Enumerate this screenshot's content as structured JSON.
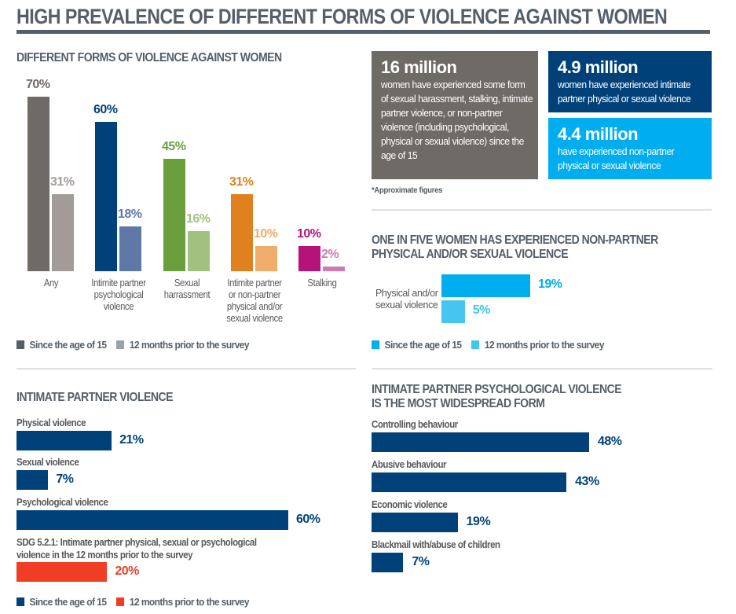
{
  "header": {
    "title": "HIGH PREVALENCE OF DIFFERENT FORMS OF VIOLENCE AGAINST WOMEN"
  },
  "colors": {
    "heading": "#555f69",
    "navy": "#00417a",
    "cyan": "#00aeef",
    "cyan_light": "#45c6ef",
    "red": "#ef3e23",
    "gray_dark": "#6e6a66",
    "gray_light": "#a39b98"
  },
  "stats": {
    "box1": {
      "big": "16 million",
      "text": "women have experienced some form of sexual harassment, stalking, intimate partner violence, or non-partner violence (including psychological, physical or sexual violence) since the age of 15"
    },
    "box2": {
      "big": "4.9 million",
      "text": "women have experienced intimate partner physical or sexual violence"
    },
    "box3": {
      "big": "4.4 million",
      "text": "have experienced non-partner physical or sexual violence"
    },
    "footnote": "*Approximate figures"
  },
  "chart_data": [
    {
      "id": "forms",
      "type": "bar",
      "title": "DIFFERENT FORMS OF VIOLENCE AGAINST WOMEN",
      "categories": [
        "Any",
        "Intimite partner psychological violence",
        "Sexual harrassment",
        "Intimite partner or non-partner physical and/or sexual violence",
        "Stalking"
      ],
      "category_lines": [
        [
          "Any"
        ],
        [
          "Intimite partner",
          "psychological",
          "violence"
        ],
        [
          "Sexual",
          "harrassment"
        ],
        [
          "Intimite partner",
          "or non-partner",
          "physical and/or",
          "sexual violence"
        ],
        [
          "Stalking"
        ]
      ],
      "series": [
        {
          "name": "Since the age of 15",
          "values": [
            70,
            60,
            45,
            31,
            10
          ],
          "colors": [
            "#6e6a66",
            "#00417a",
            "#6b9f3e",
            "#e0811f",
            "#b5127a"
          ]
        },
        {
          "name": "12 months prior to the survey",
          "values": [
            31,
            18,
            16,
            10,
            2
          ],
          "colors": [
            "#a39b98",
            "#5f78a6",
            "#a2c17e",
            "#efac6b",
            "#cc7bb0"
          ]
        }
      ],
      "value_labels": [
        [
          "70%",
          "60%",
          "45%",
          "31%",
          "10%"
        ],
        [
          "31%",
          "18%",
          "16%",
          "10%",
          "2%"
        ]
      ],
      "legend": [
        {
          "label": "Since the age of 15",
          "color": "#555f69"
        },
        {
          "label": "12 months prior to the survey",
          "color": "#9aa1a8"
        }
      ],
      "ylim": [
        0,
        70
      ],
      "legend_position": "bottom-left"
    },
    {
      "id": "nonpartner",
      "type": "bar",
      "orientation": "horizontal",
      "title": [
        "ONE IN FIVE WOMEN HAS EXPERIENCED NON-PARTNER",
        "PHYSICAL AND/OR SEXUAL VIOLENCE"
      ],
      "categories": [
        "Physical and/or sexual violence"
      ],
      "category_lines": [
        "Physical and/or",
        "sexual violence"
      ],
      "series": [
        {
          "name": "Since the age of 15",
          "values": [
            19
          ],
          "color": "#00aeef",
          "label": "19%"
        },
        {
          "name": "12 months prior to the survey",
          "values": [
            5
          ],
          "color": "#45c6ef",
          "label": "5%"
        }
      ],
      "legend": [
        {
          "label": "Since the age of 15",
          "color": "#00aeef"
        },
        {
          "label": "12 months prior to the survey",
          "color": "#45c6ef"
        }
      ],
      "legend_position": "bottom-left"
    },
    {
      "id": "ipv",
      "type": "bar",
      "orientation": "horizontal",
      "title": "INTIMATE PARTNER VIOLENCE",
      "items": [
        {
          "label": "Physical violence",
          "value": 21,
          "display": "21%",
          "series": "Since the age of 15"
        },
        {
          "label": "Sexual violence",
          "value": 7,
          "display": "7%",
          "series": "Since the age of 15"
        },
        {
          "label": "Psychological violence",
          "value": 60,
          "display": "60%",
          "series": "Since the age of 15"
        },
        {
          "label": "SDG 5.2.1: Intimate partner physical, sexual or psychological violence in the 12 months prior to the survey",
          "label_lines": [
            "SDG 5.2.1: Intimate partner physical, sexual or psychological",
            "violence in the 12 months prior to the survey"
          ],
          "value": 20,
          "display": "20%",
          "series": "12 months prior to the survey"
        }
      ],
      "legend": [
        {
          "label": "Since the age of 15",
          "color": "#00417a"
        },
        {
          "label": "12 months prior to the survey",
          "color": "#ef3e23"
        }
      ],
      "legend_position": "bottom-left"
    },
    {
      "id": "psych",
      "type": "bar",
      "orientation": "horizontal",
      "title": [
        "INTIMATE PARTNER PSYCHOLOGICAL VIOLENCE",
        "IS THE MOST WIDESPREAD FORM"
      ],
      "items": [
        {
          "label": "Controlling behaviour",
          "value": 48,
          "display": "48%"
        },
        {
          "label": "Abusive behaviour",
          "value": 43,
          "display": "43%"
        },
        {
          "label": "Economic violence",
          "value": 19,
          "display": "19%"
        },
        {
          "label": "Blackmail with/abuse of children",
          "value": 7,
          "display": "7%"
        }
      ],
      "color": "#00417a"
    }
  ]
}
